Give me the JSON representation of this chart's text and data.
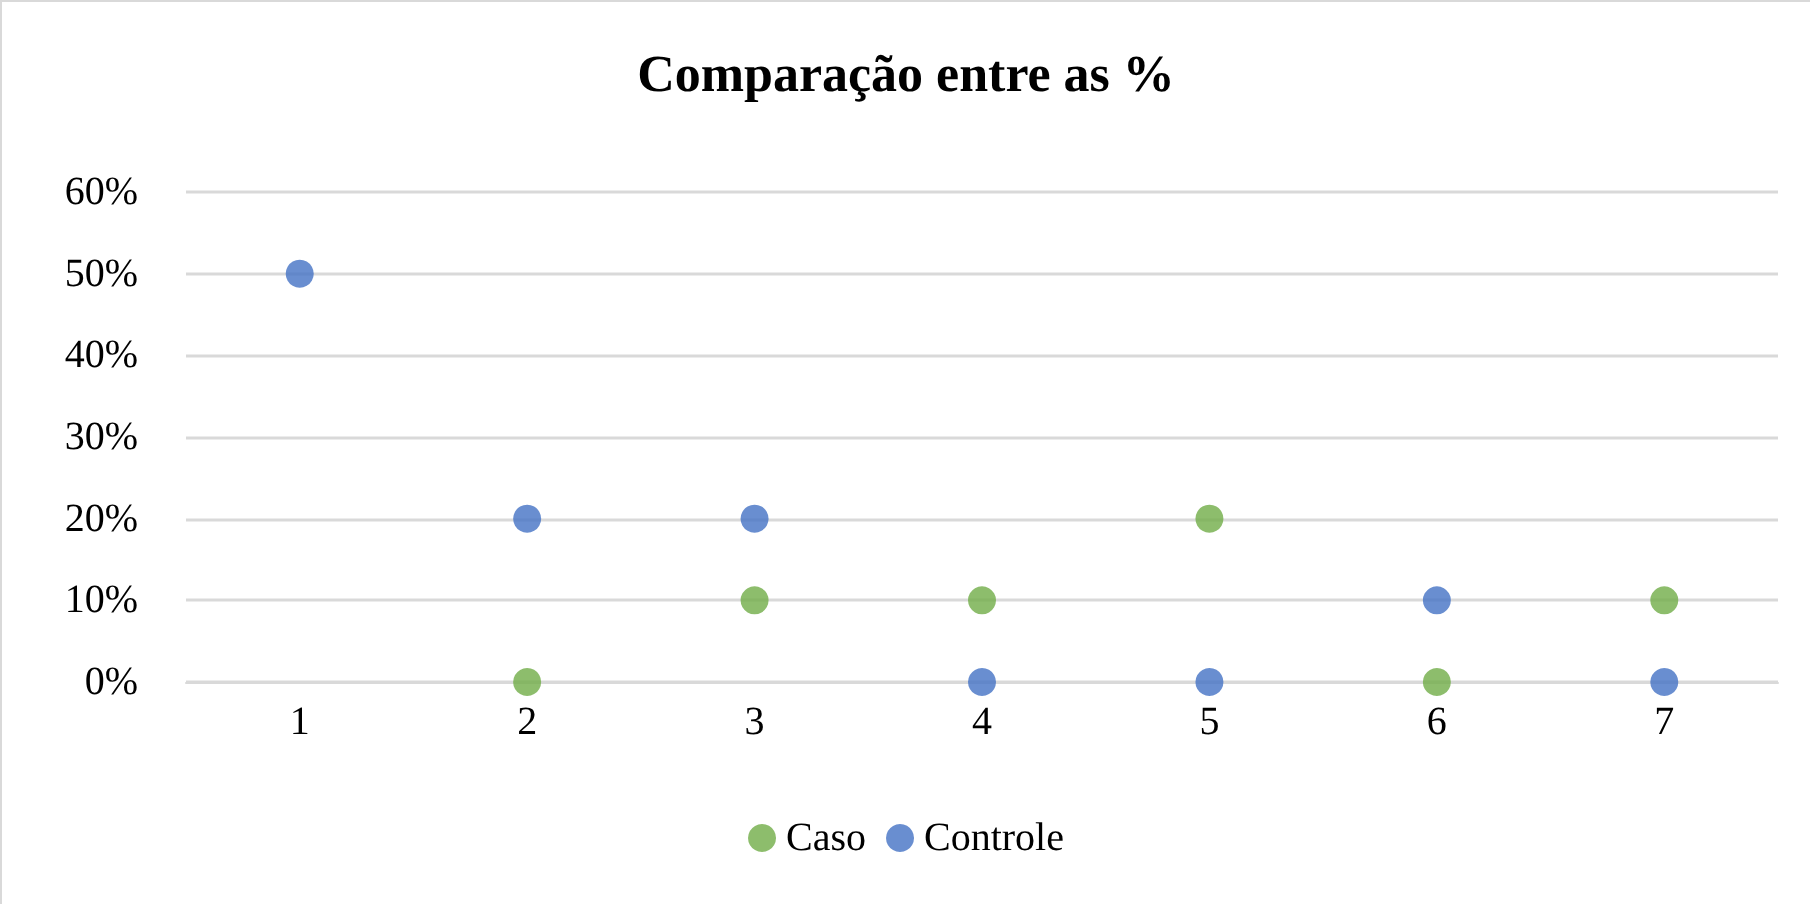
{
  "chart_data": {
    "type": "scatter",
    "title": "Comparação entre as %",
    "categories": [
      "1",
      "2",
      "3",
      "4",
      "5",
      "6",
      "7"
    ],
    "series": [
      {
        "name": "Caso",
        "color": "#70ad47",
        "values": [
          null,
          0,
          10,
          10,
          20,
          0,
          10
        ]
      },
      {
        "name": "Controle",
        "color": "#4472c4",
        "values": [
          50,
          20,
          20,
          0,
          0,
          10,
          0
        ]
      }
    ],
    "ylim": [
      0,
      60
    ],
    "yticks": [
      {
        "value": 0,
        "label": "0%"
      },
      {
        "value": 10,
        "label": "10%"
      },
      {
        "value": 20,
        "label": "20%"
      },
      {
        "value": 30,
        "label": "30%"
      },
      {
        "value": 40,
        "label": "40%"
      },
      {
        "value": 50,
        "label": "50%"
      },
      {
        "value": 60,
        "label": "60%"
      }
    ],
    "grid": "y",
    "legend": "bottom",
    "marker": "circle"
  }
}
